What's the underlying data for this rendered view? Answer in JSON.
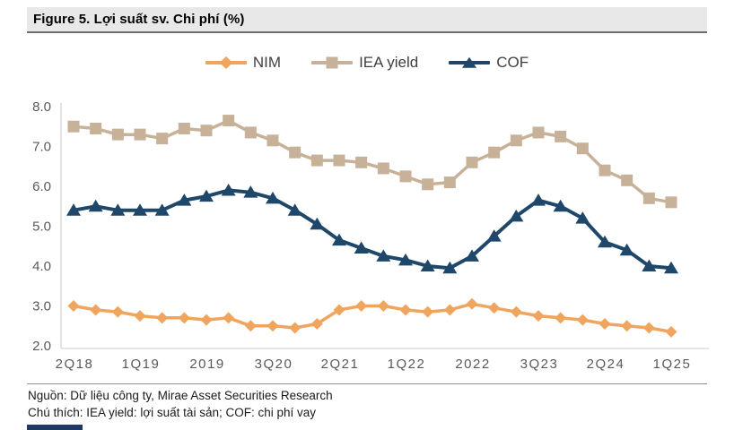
{
  "figure": {
    "title": "Figure 5. Lợi suất sv. Chi phí (%)",
    "source_line": "Nguồn: Dữ liệu công ty, Mirae Asset Securities Research",
    "note_line": "Chú thích: IEA yield: lợi suất tài sản; COF: chi phí vay"
  },
  "colors": {
    "title_bar_bg": "#e8e8e8",
    "title_bar_underline": "#6e6e6e",
    "axis_line": "#d6d6d6",
    "tick_text": "#595959",
    "nim_orange": "#f0a55e",
    "iea_tan": "#c7b299",
    "cof_navy": "#1e4769",
    "bottom_bar_navy": "#1f3864"
  },
  "chart_data": {
    "type": "line",
    "title": "Figure 5. Lợi suất sv. Chi phí (%)",
    "xlabel": "",
    "ylabel": "",
    "ylim": [
      2.0,
      8.0
    ],
    "grid": false,
    "legend_position": "top-center",
    "y_ticks": [
      "8.0",
      "7.0",
      "6.0",
      "5.0",
      "4.0",
      "3.0",
      "2.0"
    ],
    "x_tick_labels": [
      "2Q18",
      "1Q19",
      "2019",
      "3Q20",
      "2Q21",
      "1Q22",
      "2022",
      "3Q23",
      "2Q24",
      "1Q25"
    ],
    "x_tick_indices": [
      0,
      3,
      6,
      9,
      12,
      15,
      18,
      21,
      24,
      27
    ],
    "categories": [
      "2Q18",
      "3Q18",
      "4Q18",
      "1Q19",
      "2Q19",
      "3Q19",
      "4Q19",
      "1Q20",
      "2Q20",
      "3Q20",
      "4Q20",
      "1Q21",
      "2Q21",
      "3Q21",
      "4Q21",
      "1Q22",
      "2Q22",
      "3Q22",
      "4Q22",
      "1Q23",
      "2Q23",
      "3Q23",
      "4Q23",
      "1Q24",
      "2Q24",
      "3Q24",
      "4Q24",
      "1Q25"
    ],
    "series": [
      {
        "name": "NIM",
        "marker": "diamond",
        "color": "#f0a55e",
        "line_width": 3.5,
        "values": [
          3.0,
          2.9,
          2.85,
          2.75,
          2.7,
          2.7,
          2.65,
          2.7,
          2.5,
          2.5,
          2.45,
          2.55,
          2.9,
          3.0,
          3.0,
          2.9,
          2.85,
          2.9,
          3.05,
          2.95,
          2.85,
          2.75,
          2.7,
          2.65,
          2.55,
          2.5,
          2.45,
          2.35
        ]
      },
      {
        "name": "IEA yield",
        "marker": "square",
        "color": "#c7b299",
        "line_width": 3.5,
        "values": [
          7.5,
          7.45,
          7.3,
          7.3,
          7.2,
          7.45,
          7.4,
          7.65,
          7.35,
          7.15,
          6.85,
          6.65,
          6.65,
          6.6,
          6.45,
          6.25,
          6.05,
          6.1,
          6.6,
          6.85,
          7.15,
          7.35,
          7.25,
          6.95,
          6.4,
          6.15,
          5.7,
          5.6
        ]
      },
      {
        "name": "COF",
        "marker": "triangle",
        "color": "#1e4769",
        "line_width": 4,
        "values": [
          5.4,
          5.5,
          5.4,
          5.4,
          5.4,
          5.65,
          5.75,
          5.9,
          5.85,
          5.7,
          5.4,
          5.05,
          4.65,
          4.45,
          4.25,
          4.15,
          4.0,
          3.95,
          4.25,
          4.75,
          5.25,
          5.65,
          5.5,
          5.2,
          4.6,
          4.4,
          4.0,
          3.95
        ]
      }
    ]
  }
}
